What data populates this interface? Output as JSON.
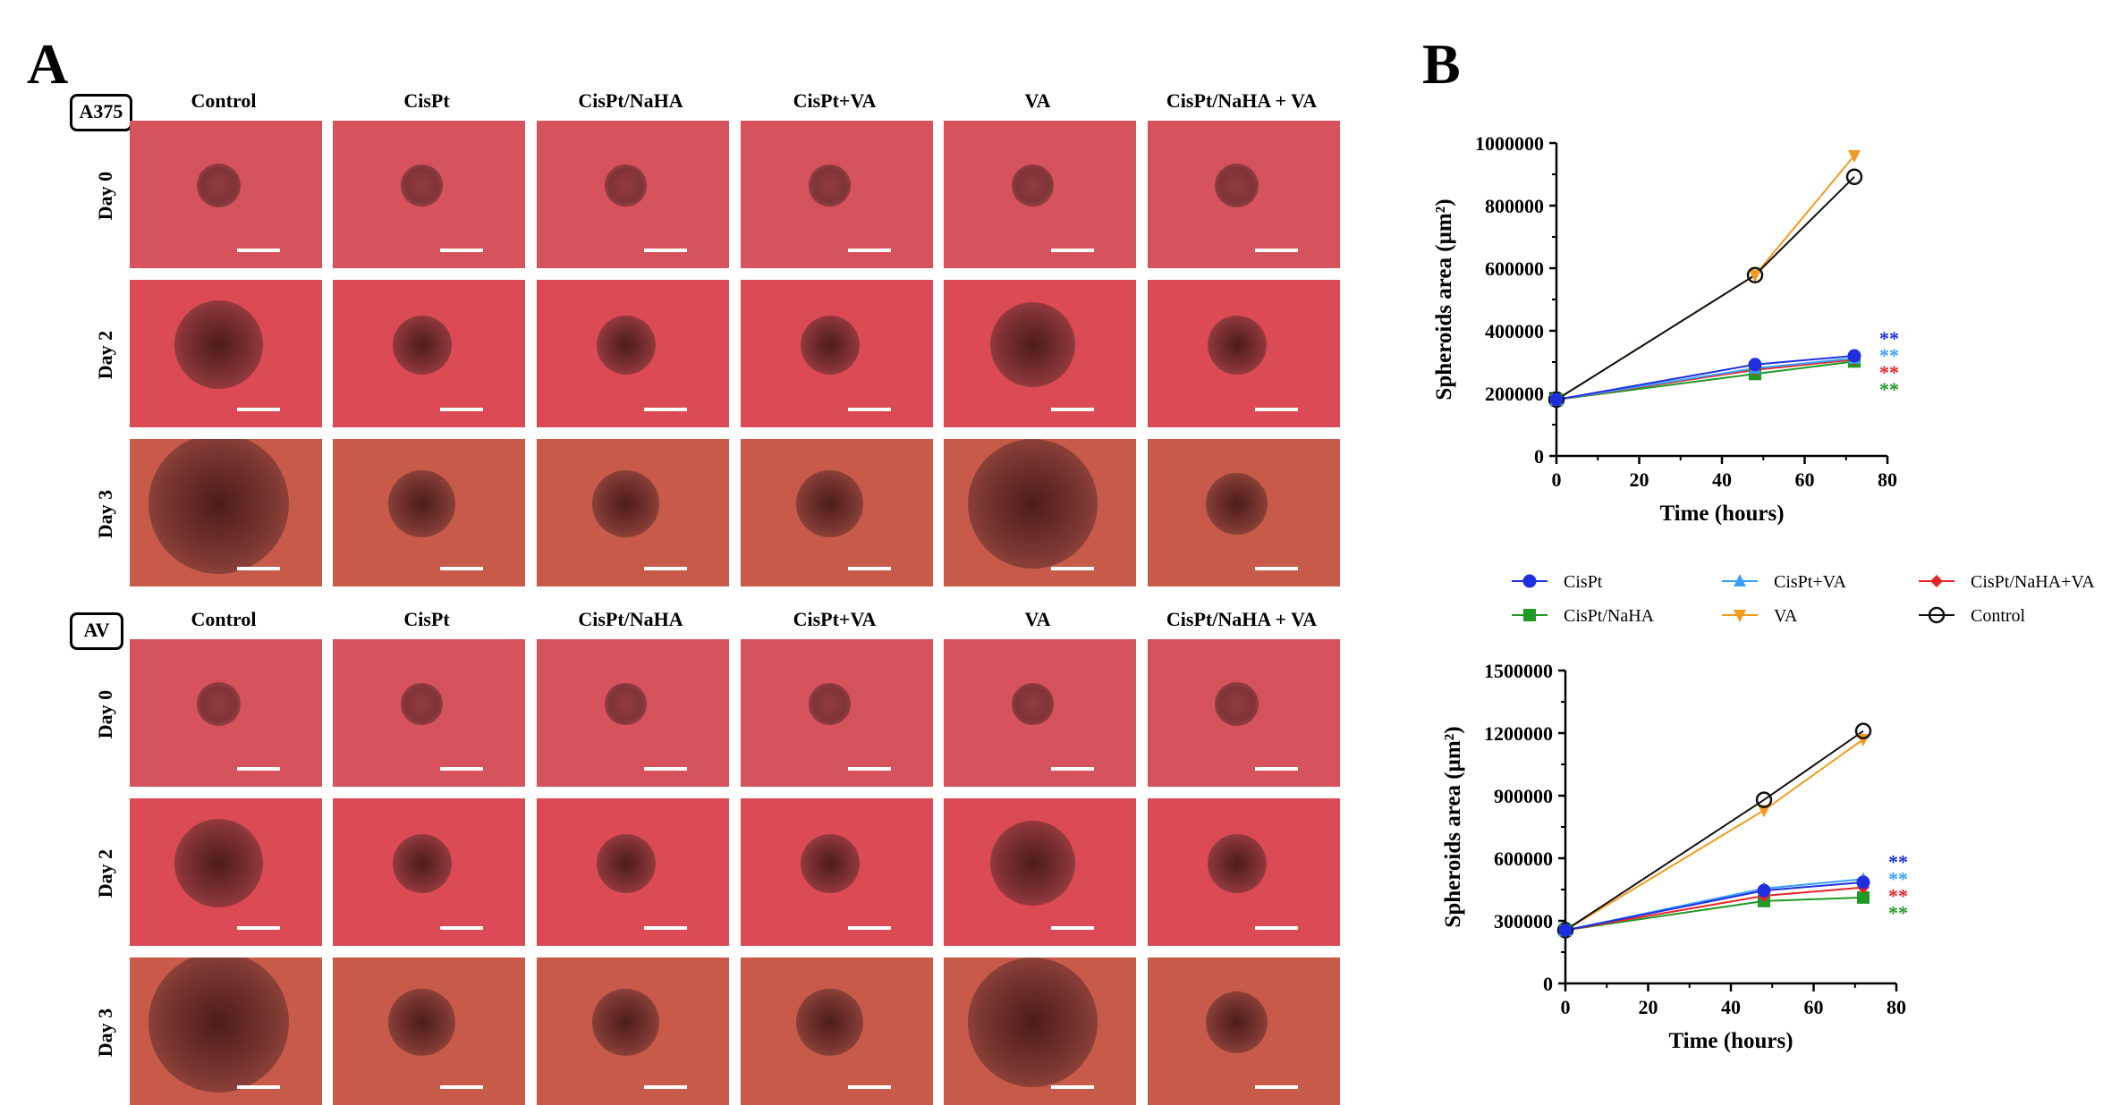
{
  "panel_a": {
    "letter": "A",
    "groups": [
      {
        "cell_line": "A375",
        "columns": [
          "Control",
          "CisPt",
          "CisPt/NaHA",
          "CisPt+VA",
          "VA",
          "CisPt/NaHA + VA"
        ],
        "rows": [
          "Day 0",
          "Day 2",
          "Day 3"
        ]
      },
      {
        "cell_line": "AV",
        "columns": [
          "Control",
          "CisPt",
          "CisPt/NaHA",
          "CisPt+VA",
          "VA",
          "CisPt/NaHA + VA"
        ],
        "rows": [
          "Day 0",
          "Day 2",
          "Day 3"
        ]
      }
    ],
    "colors": {
      "day0": "#d6525d",
      "day2": "#db4a55",
      "day3": "#c75a48",
      "spheroid": "#5a2a2a"
    }
  },
  "panel_b": {
    "letter": "B"
  },
  "legend": [
    {
      "label": "CisPt",
      "color": "#1f2fe0",
      "marker": "circle"
    },
    {
      "label": "CisPt+VA",
      "color": "#3aa0ff",
      "marker": "triangle-up"
    },
    {
      "label": "CisPt/NaHA+VA",
      "color": "#e8242a",
      "marker": "diamond"
    },
    {
      "label": "CisPt/NaHA",
      "color": "#1e9a25",
      "marker": "square"
    },
    {
      "label": "VA",
      "color": "#f39a1e",
      "marker": "triangle-down"
    },
    {
      "label": "Control",
      "color": "#111111",
      "marker": "open-circle"
    }
  ],
  "chart_data": [
    {
      "type": "line",
      "xlabel": "Time (hours)",
      "ylabel": "Spheroids area (µm²)",
      "xlim": [
        0,
        80
      ],
      "ylim": [
        0,
        1000000
      ],
      "xticks": [
        "0",
        "20",
        "40",
        "60",
        "80"
      ],
      "yticks": [
        "0",
        "200000",
        "400000",
        "600000",
        "800000",
        "1000000"
      ],
      "x": [
        0,
        48,
        72
      ],
      "series": [
        {
          "name": "CisPt",
          "values": [
            180000,
            292000,
            320000
          ],
          "color": "#1f2fe0",
          "marker": "circle"
        },
        {
          "name": "CisPt+VA",
          "values": [
            180000,
            280000,
            312000
          ],
          "color": "#3aa0ff",
          "marker": "triangle-up"
        },
        {
          "name": "CisPt/NaHA+VA",
          "values": [
            180000,
            275000,
            308000
          ],
          "color": "#e8242a",
          "marker": "diamond"
        },
        {
          "name": "CisPt/NaHA",
          "values": [
            180000,
            262000,
            302000
          ],
          "color": "#1e9a25",
          "marker": "square"
        },
        {
          "name": "VA",
          "values": [
            180000,
            578000,
            960000
          ],
          "color": "#f39a1e",
          "marker": "triangle-down"
        },
        {
          "name": "Control",
          "values": [
            180000,
            578000,
            892000
          ],
          "color": "#111111",
          "marker": "open-circle"
        }
      ],
      "significance": [
        {
          "text": "**",
          "color": "#1f2fe0"
        },
        {
          "text": "**",
          "color": "#3aa0ff"
        },
        {
          "text": "**",
          "color": "#e8242a"
        },
        {
          "text": "**",
          "color": "#1e9a25"
        }
      ]
    },
    {
      "type": "line",
      "xlabel": "Time (hours)",
      "ylabel": "Spheroids area (µm²)",
      "xlim": [
        0,
        80
      ],
      "ylim": [
        0,
        1500000
      ],
      "xticks": [
        "0",
        "20",
        "40",
        "60",
        "80"
      ],
      "yticks": [
        "0",
        "300000",
        "600000",
        "900000",
        "1200000",
        "1500000"
      ],
      "x": [
        0,
        48,
        72
      ],
      "series": [
        {
          "name": "CisPt",
          "values": [
            255000,
            445000,
            485000
          ],
          "color": "#1f2fe0",
          "marker": "circle"
        },
        {
          "name": "CisPt+VA",
          "values": [
            255000,
            455000,
            500000
          ],
          "color": "#3aa0ff",
          "marker": "triangle-up"
        },
        {
          "name": "CisPt/NaHA+VA",
          "values": [
            255000,
            420000,
            460000
          ],
          "color": "#e8242a",
          "marker": "diamond"
        },
        {
          "name": "CisPt/NaHA",
          "values": [
            255000,
            395000,
            412000
          ],
          "color": "#1e9a25",
          "marker": "square"
        },
        {
          "name": "VA",
          "values": [
            255000,
            830000,
            1170000
          ],
          "color": "#f39a1e",
          "marker": "triangle-down"
        },
        {
          "name": "Control",
          "values": [
            255000,
            880000,
            1210000
          ],
          "color": "#111111",
          "marker": "open-circle"
        }
      ],
      "significance": [
        {
          "text": "**",
          "color": "#1f2fe0"
        },
        {
          "text": "**",
          "color": "#3aa0ff"
        },
        {
          "text": "**",
          "color": "#e8242a"
        },
        {
          "text": "**",
          "color": "#1e9a25"
        }
      ]
    }
  ]
}
